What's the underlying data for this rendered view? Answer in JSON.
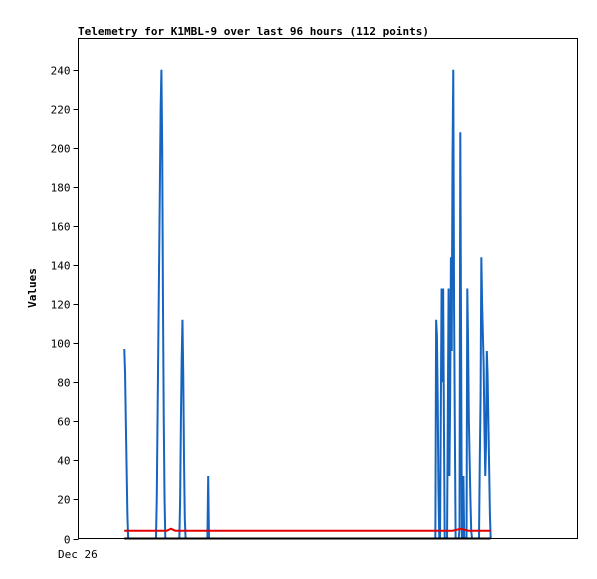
{
  "chart_data": {
    "type": "line",
    "title": "Telemetry for K1MBL-9 over last 96 hours (112 points)",
    "xlabel": "",
    "ylabel": "Values",
    "x_tick_labels": [
      "Dec 26"
    ],
    "y_ticks": [
      0,
      20,
      40,
      60,
      80,
      100,
      120,
      140,
      160,
      180,
      200,
      220,
      240
    ],
    "xlim": [
      0,
      96
    ],
    "ylim": [
      0,
      256
    ],
    "grid": false,
    "legend": "none",
    "series": [
      {
        "color": "#1565c0",
        "x": [
          8.8,
          8.95,
          9.1,
          9.25,
          9.4,
          9.55,
          9.7,
          9.85,
          14.9,
          15.05,
          15.2,
          15.35,
          15.5,
          15.65,
          15.8,
          15.95,
          16.1,
          16.25,
          16.4,
          16.55,
          16.7,
          16.85,
          17.0,
          19.4,
          19.55,
          19.7,
          19.85,
          20.0,
          20.15,
          20.3,
          20.45,
          20.6,
          20.75,
          20.9,
          21.05,
          21.2,
          24.8,
          24.95,
          25.1,
          68.5,
          68.65,
          68.8,
          68.95,
          69.1,
          69.25,
          69.4,
          69.55,
          69.7,
          69.85,
          70.0,
          70.15,
          70.3,
          70.45,
          70.6,
          70.75,
          70.9,
          71.05,
          71.2,
          71.35,
          71.5,
          71.65,
          71.8,
          71.95,
          72.1,
          72.25,
          72.4,
          72.55,
          72.7,
          72.85,
          73.0,
          73.15,
          73.3,
          73.45,
          73.6,
          73.75,
          73.9,
          74.05,
          74.2,
          74.35,
          74.5,
          74.65,
          74.8,
          74.95,
          75.1,
          75.25,
          75.4,
          75.55,
          75.7,
          75.85,
          76.0,
          76.15,
          76.3,
          76.45,
          76.6,
          76.75,
          76.9,
          77.05,
          77.2,
          77.35,
          77.5,
          77.65,
          77.8,
          77.95,
          78.1,
          78.25,
          78.4,
          78.55,
          78.7,
          78.85,
          79.0,
          79.15,
          79.3
        ],
        "values": [
          97,
          85,
          60,
          36,
          12,
          0,
          0,
          0,
          0,
          20,
          60,
          100,
          140,
          180,
          220,
          240,
          200,
          120,
          60,
          20,
          0,
          0,
          0,
          0,
          20,
          60,
          92,
          112,
          84,
          40,
          10,
          0,
          0,
          0,
          0,
          0,
          0,
          32,
          0,
          0,
          0,
          112,
          104,
          72,
          24,
          0,
          0,
          64,
          128,
          80,
          128,
          60,
          0,
          0,
          0,
          0,
          64,
          128,
          32,
          72,
          144,
          96,
          192,
          240,
          120,
          56,
          0,
          0,
          0,
          0,
          0,
          5,
          208,
          104,
          0,
          0,
          32,
          0,
          0,
          0,
          0,
          128,
          100,
          60,
          40,
          20,
          4,
          0,
          0,
          0,
          0,
          0,
          0,
          0,
          0,
          0,
          0,
          40,
          72,
          144,
          120,
          104,
          88,
          56,
          32,
          48,
          96,
          84,
          60,
          36,
          12,
          0
        ]
      },
      {
        "color": "#e00000",
        "x": [
          8.8,
          15.0,
          17.0,
          17.8,
          18.6,
          20.0,
          21.2,
          66.0,
          72.0,
          73.5,
          75.0,
          79.3
        ],
        "values": [
          4,
          4,
          4,
          5,
          4,
          4,
          4,
          4,
          4,
          5,
          4,
          4
        ]
      },
      {
        "color": "#000000",
        "x": [
          8.8,
          79.3
        ],
        "values": [
          0,
          0
        ]
      }
    ]
  }
}
